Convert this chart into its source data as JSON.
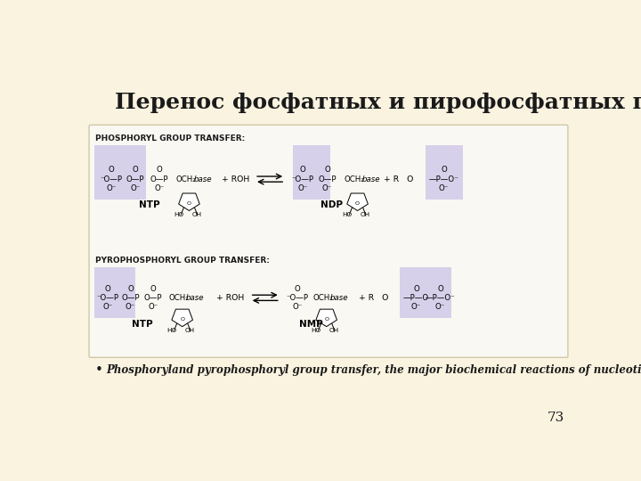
{
  "background_color": "#faf3e0",
  "title": "Перенос фосфатных и пирофосфатных групп",
  "title_fontsize": 18,
  "title_color": "#1a1a1a",
  "subtitle_text": "Phosphoryland pyrophosphoryl group transfer, the major biochemical reactions of nucleotides.",
  "subtitle_fontsize": 8.5,
  "page_number": "73",
  "page_number_fontsize": 11,
  "section1_label": "PHOSPHORYL GROUP TRANSFER:",
  "section2_label": "PYROPHOSPHORYL GROUP TRANSFER:",
  "section_label_fontsize": 6.5,
  "highlight_color": "#c9bfe8",
  "text_color": "#1a1a1a",
  "ntp_label": "NTP",
  "ndp_label": "NDP",
  "nmp_label": "NMP",
  "box_bg": "#faf8f2",
  "border_color": "#d0c8a8"
}
